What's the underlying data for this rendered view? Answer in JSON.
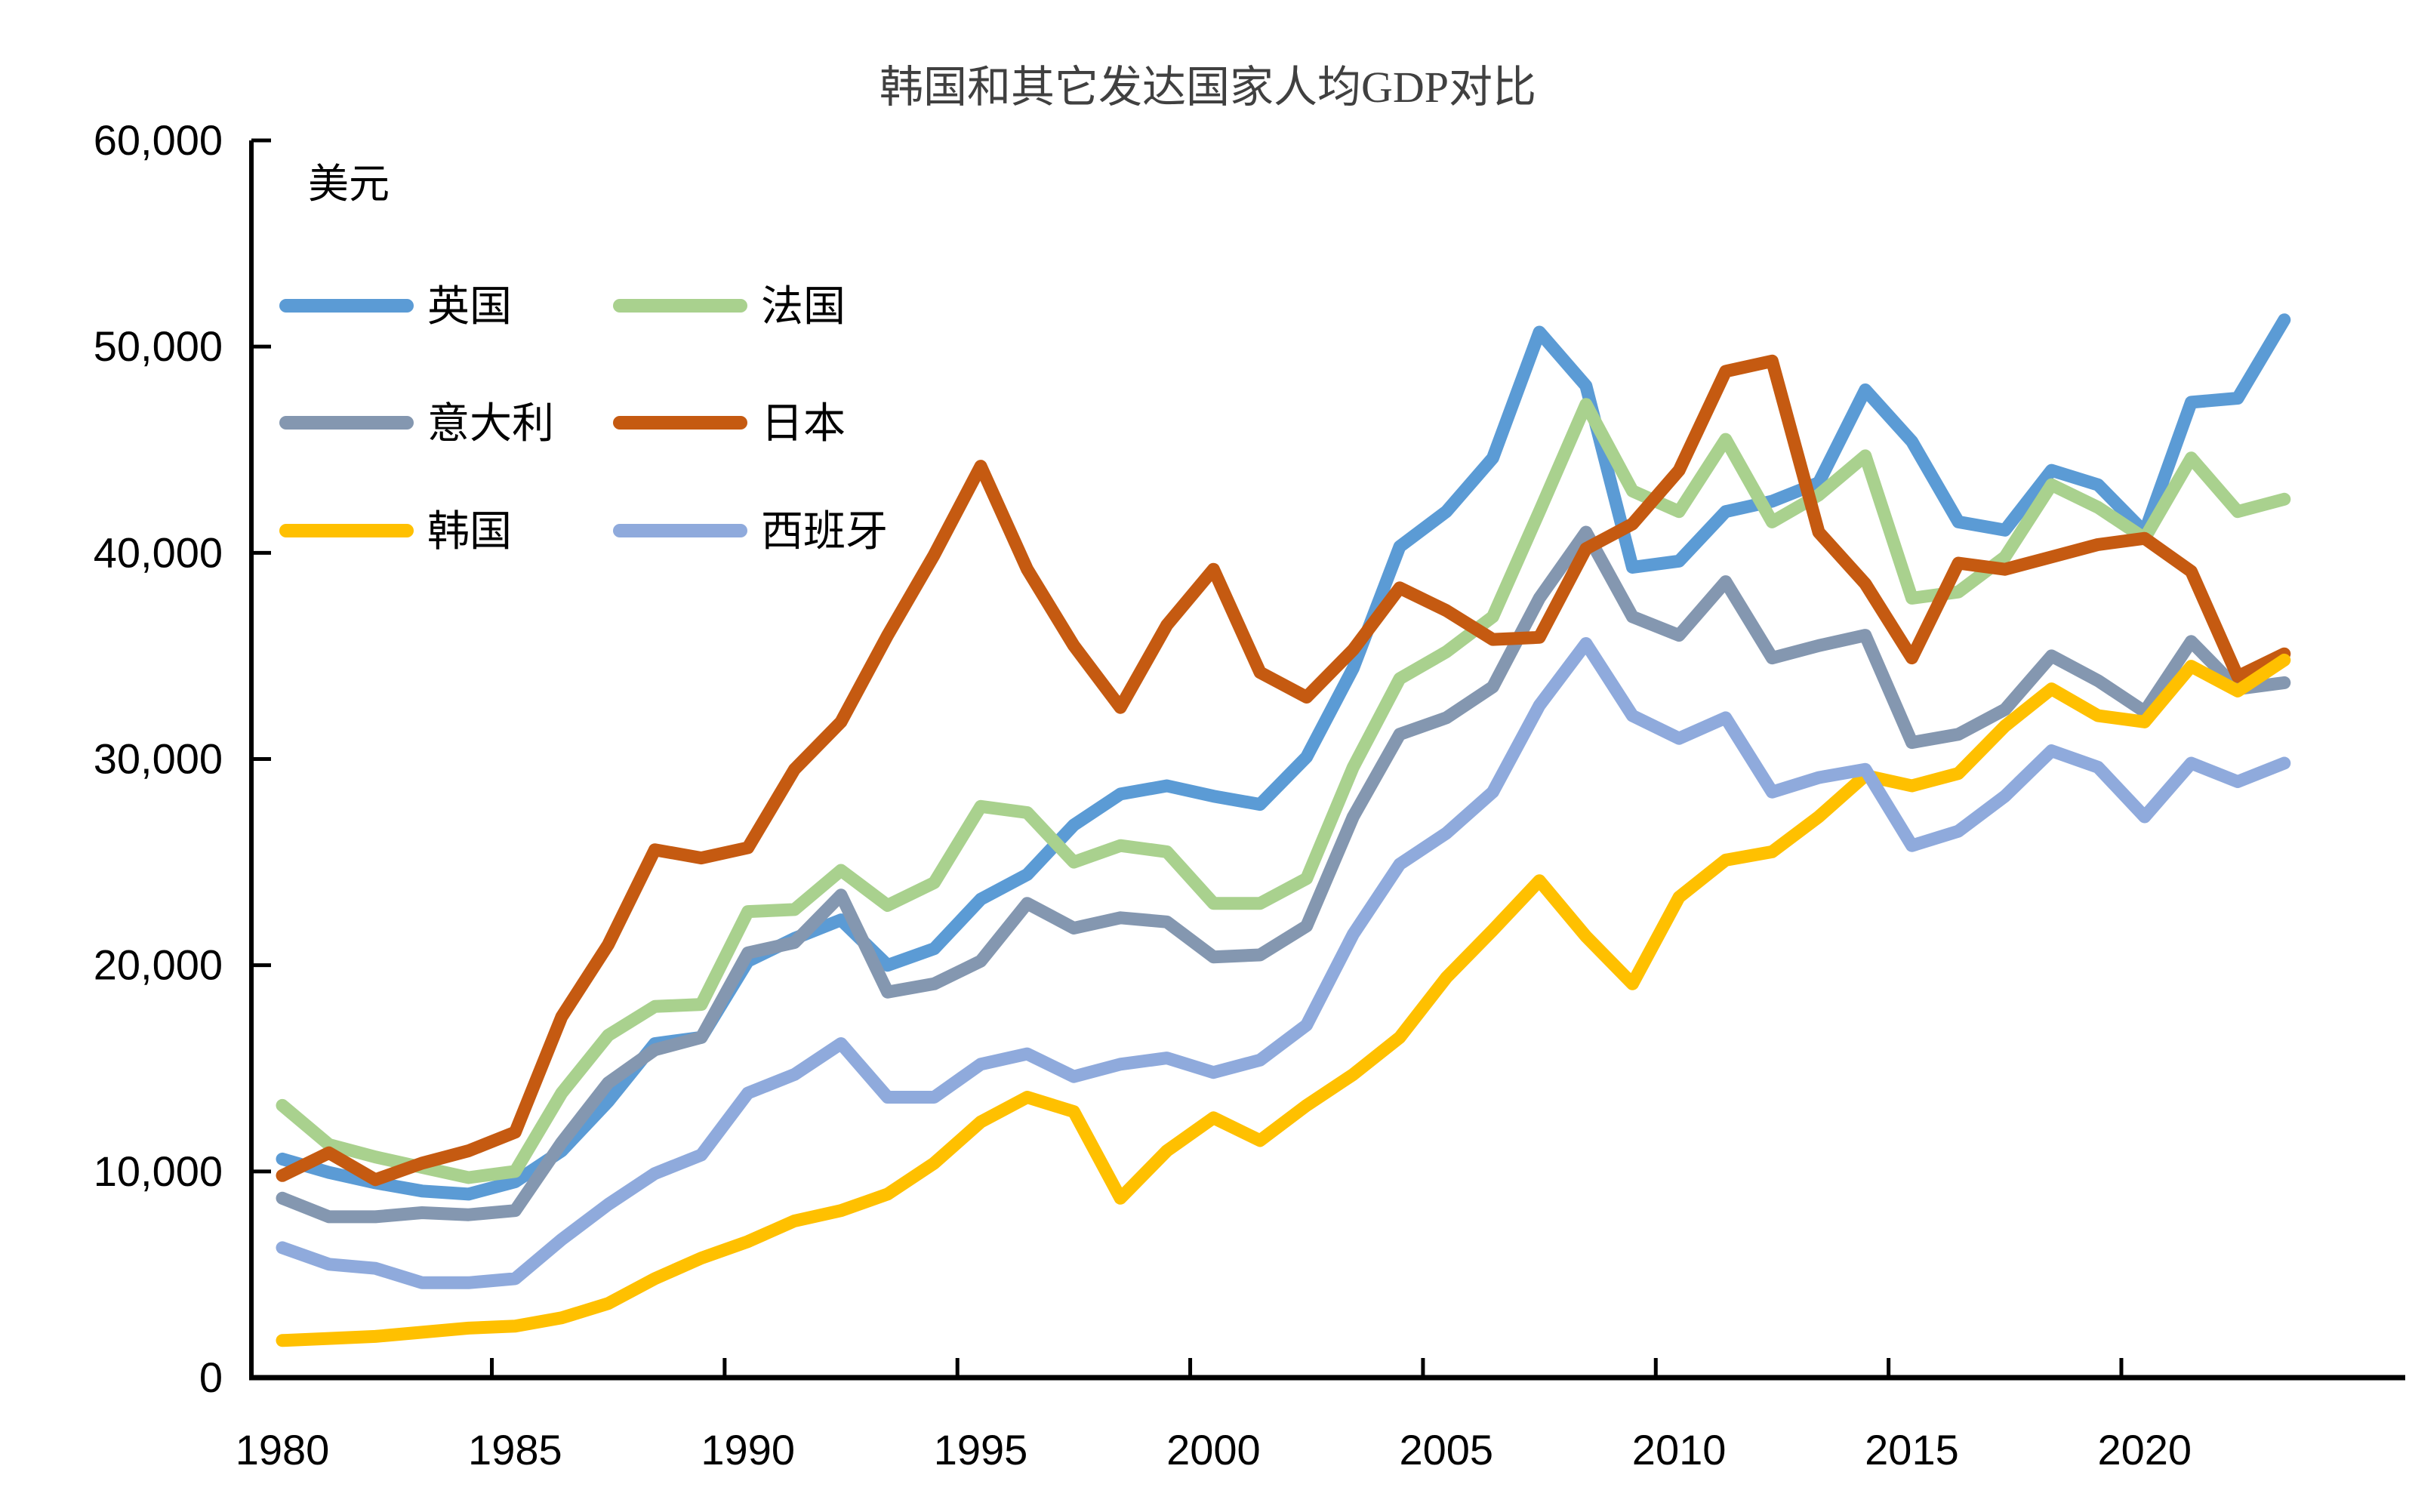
{
  "title": "韩国和其它发达国家人均GDP对比",
  "unit_label": "美元",
  "colors": {
    "uk": "#5B9BD5",
    "france": "#A9D18E",
    "italy": "#8497B0",
    "japan": "#C55A11",
    "korea": "#FFC000",
    "spain": "#8FAADC",
    "axis": "#000000",
    "title_text": "#404040"
  },
  "legend": [
    {
      "label": "英国",
      "color": "#5B9BD5",
      "col": 0,
      "row": 0
    },
    {
      "label": "法国",
      "color": "#A9D18E",
      "col": 1,
      "row": 0
    },
    {
      "label": "意大利",
      "color": "#8497B0",
      "col": 0,
      "row": 1
    },
    {
      "label": "日本",
      "color": "#C55A11",
      "col": 1,
      "row": 1
    },
    {
      "label": "韩国",
      "color": "#FFC000",
      "col": 0,
      "row": 2
    },
    {
      "label": "西班牙",
      "color": "#8FAADC",
      "col": 1,
      "row": 2
    }
  ],
  "y_axis": {
    "tick_labels": [
      "0",
      "10,000",
      "20,000",
      "30,000",
      "40,000",
      "50,000",
      "60,000"
    ],
    "tick_values": [
      0,
      10000,
      20000,
      30000,
      40000,
      50000,
      60000
    ]
  },
  "x_axis": {
    "tick_labels": [
      "1980",
      "1985",
      "1990",
      "1995",
      "2000",
      "2005",
      "2010",
      "2015",
      "2020"
    ],
    "tick_years": [
      1980,
      1985,
      1990,
      1995,
      2000,
      2005,
      2010,
      2015,
      2020
    ]
  },
  "chart_data": {
    "type": "line",
    "title": "韩国和其它发达国家人均GDP对比",
    "ylabel": "美元",
    "ylim": [
      0,
      60000
    ],
    "grid": false,
    "legend_position": "top-left",
    "x": [
      1980,
      1981,
      1982,
      1983,
      1984,
      1985,
      1986,
      1987,
      1988,
      1989,
      1990,
      1991,
      1992,
      1993,
      1994,
      1995,
      1996,
      1997,
      1998,
      1999,
      2000,
      2001,
      2002,
      2003,
      2004,
      2005,
      2006,
      2007,
      2008,
      2009,
      2010,
      2011,
      2012,
      2013,
      2014,
      2015,
      2016,
      2017,
      2018,
      2019,
      2020,
      2021,
      2022,
      2023
    ],
    "series": [
      {
        "name": "英国",
        "color": "#5B9BD5",
        "values": [
          10600,
          9950,
          9450,
          9050,
          8900,
          9500,
          11000,
          13400,
          16200,
          16500,
          20200,
          21300,
          22200,
          20000,
          20800,
          23200,
          24400,
          26800,
          28300,
          28700,
          28200,
          27800,
          30100,
          34400,
          40300,
          42000,
          44600,
          50700,
          48100,
          39300,
          39600,
          42000,
          42500,
          43400,
          47900,
          45400,
          41500,
          41100,
          44000,
          43300,
          41000,
          47300,
          47500,
          51300
        ]
      },
      {
        "name": "法国",
        "color": "#A9D18E",
        "values": [
          13200,
          11300,
          10700,
          10200,
          9700,
          10000,
          13800,
          16600,
          18000,
          18100,
          22600,
          22700,
          24600,
          22900,
          24000,
          27700,
          27400,
          25000,
          25800,
          25500,
          23000,
          23000,
          24200,
          29600,
          33900,
          35200,
          36900,
          42000,
          47200,
          43000,
          42000,
          45500,
          41500,
          42800,
          44700,
          37800,
          38100,
          39800,
          43300,
          42200,
          40700,
          44600,
          42000,
          42600
        ]
      },
      {
        "name": "意大利",
        "color": "#8497B0",
        "values": [
          8700,
          7800,
          7800,
          8000,
          7900,
          8100,
          11400,
          14300,
          15900,
          16500,
          20600,
          21100,
          23400,
          18700,
          19100,
          20200,
          23000,
          21800,
          22300,
          22100,
          20400,
          20500,
          21900,
          27200,
          31200,
          32000,
          33500,
          37800,
          41000,
          36900,
          36000,
          38600,
          34900,
          35500,
          36000,
          30800,
          31200,
          32400,
          35000,
          33800,
          32300,
          35700,
          33400,
          33700
        ]
      },
      {
        "name": "日本",
        "color": "#C55A11",
        "values": [
          9800,
          10900,
          9600,
          10400,
          11000,
          11900,
          17500,
          21000,
          25600,
          25200,
          25700,
          29500,
          31800,
          36000,
          39900,
          44200,
          39200,
          35500,
          32500,
          36500,
          39200,
          34200,
          33000,
          35300,
          38300,
          37200,
          35800,
          35900,
          40200,
          41400,
          44000,
          48800,
          49300,
          41000,
          38500,
          34900,
          39500,
          39200,
          39800,
          40400,
          40700,
          39100,
          34000,
          35100
        ]
      },
      {
        "name": "韩国",
        "color": "#FFC000",
        "values": [
          1800,
          1900,
          2000,
          2200,
          2400,
          2500,
          2900,
          3600,
          4800,
          5800,
          6600,
          7600,
          8100,
          8900,
          10400,
          12400,
          13600,
          12900,
          8700,
          11000,
          12600,
          11500,
          13200,
          14700,
          16500,
          19400,
          21700,
          24100,
          21400,
          19100,
          23300,
          25100,
          25500,
          27200,
          29200,
          28700,
          29300,
          31600,
          33400,
          32100,
          31800,
          34500,
          33300,
          34800
        ]
      },
      {
        "name": "西班牙",
        "color": "#8FAADC",
        "values": [
          6300,
          5500,
          5300,
          4600,
          4600,
          4800,
          6700,
          8400,
          9900,
          10800,
          13800,
          14700,
          16200,
          13600,
          13600,
          15200,
          15700,
          14600,
          15200,
          15500,
          14800,
          15400,
          17100,
          21500,
          24900,
          26400,
          28400,
          32600,
          35600,
          32100,
          31000,
          32000,
          28400,
          29100,
          29500,
          25800,
          26500,
          28200,
          30400,
          29600,
          27200,
          29800,
          28900,
          29800
        ]
      }
    ]
  }
}
